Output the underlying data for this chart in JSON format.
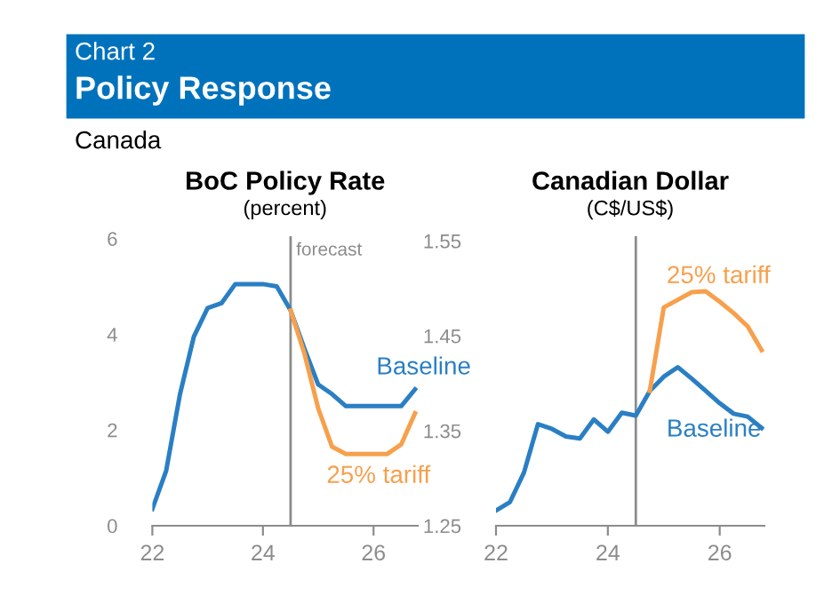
{
  "chart_data": [
    {
      "type": "line",
      "title": "BoC Policy Rate",
      "subtitle": "(percent)",
      "annotations": [
        "Chart 2",
        "Policy Response",
        "Canada"
      ],
      "xlim": [
        22,
        26.8
      ],
      "xticks": [
        22,
        24,
        26
      ],
      "ylim": [
        0,
        6.05
      ],
      "yticks": [
        0,
        2,
        4,
        6
      ],
      "grid": false,
      "legend": false,
      "tick_labels": "xy",
      "ref_lines": [
        {
          "axis": "x",
          "value": 24.5,
          "label": "forecast",
          "color": "#8c8c8c"
        }
      ],
      "series": [
        {
          "name": "Baseline",
          "color": "#2a7fc4",
          "x": [
            22,
            22.25,
            22.5,
            22.75,
            23,
            23.25,
            23.5,
            23.75,
            24,
            24.25,
            24.5,
            24.75,
            25,
            25.25,
            25.5,
            25.75,
            26,
            26.25,
            26.5,
            26.75
          ],
          "values": [
            0.35,
            1.15,
            2.75,
            3.95,
            4.55,
            4.65,
            5.05,
            5.05,
            5.05,
            5.0,
            4.5,
            3.7,
            2.95,
            2.75,
            2.5,
            2.5,
            2.5,
            2.5,
            2.5,
            2.85
          ]
        },
        {
          "name": "25% tariff",
          "color": "#f7a04c",
          "x": [
            24.5,
            24.75,
            25,
            25.25,
            25.5,
            25.75,
            26,
            26.25,
            26.5,
            26.75
          ],
          "values": [
            4.5,
            3.6,
            2.45,
            1.65,
            1.5,
            1.5,
            1.5,
            1.5,
            1.7,
            2.35
          ]
        }
      ]
    },
    {
      "type": "line",
      "title": "Canadian Dollar",
      "subtitle": "(C$/US$)",
      "xlim": [
        22,
        26.8
      ],
      "xticks": [
        22,
        24,
        26
      ],
      "ylim": [
        1.25,
        1.555
      ],
      "yticks": [
        1.25,
        1.35,
        1.45,
        1.55
      ],
      "grid": false,
      "legend": false,
      "ref_lines": [
        {
          "axis": "x",
          "value": 24.5,
          "label": null,
          "color": "#8c8c8c"
        }
      ],
      "series": [
        {
          "name": "Baseline",
          "color": "#2a7fc4",
          "x": [
            22,
            22.25,
            22.5,
            22.75,
            23,
            23.25,
            23.5,
            23.75,
            24,
            24.25,
            24.5,
            24.75,
            25,
            25.25,
            25.5,
            25.75,
            26,
            26.25,
            26.5,
            26.75
          ],
          "values": [
            1.266,
            1.275,
            1.306,
            1.357,
            1.352,
            1.344,
            1.342,
            1.362,
            1.349,
            1.369,
            1.366,
            1.392,
            1.407,
            1.417,
            1.405,
            1.392,
            1.379,
            1.368,
            1.365,
            1.353
          ]
        },
        {
          "name": "25% tariff",
          "color": "#f7a04c",
          "x": [
            24.75,
            25,
            25.25,
            25.5,
            25.75,
            26,
            26.25,
            26.5,
            26.75
          ],
          "values": [
            1.392,
            1.48,
            1.488,
            1.496,
            1.497,
            1.486,
            1.474,
            1.46,
            1.435
          ]
        }
      ]
    }
  ]
}
